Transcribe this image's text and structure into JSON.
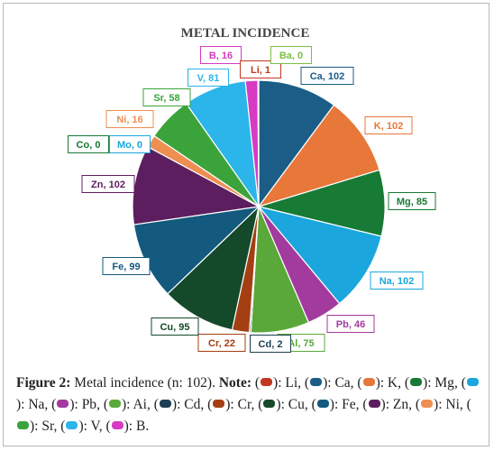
{
  "chart_data": {
    "type": "pie",
    "title": "METAL INCIDENCE",
    "slices": [
      {
        "name": "Ca",
        "value": 102,
        "label": "Ca, 102",
        "color": "#1b5d86"
      },
      {
        "name": "K",
        "value": 102,
        "label": "K, 102",
        "color": "#e8773a"
      },
      {
        "name": "Mg",
        "value": 85,
        "label": "Mg, 85",
        "color": "#177a35"
      },
      {
        "name": "Na",
        "value": 102,
        "label": "Na, 102",
        "color": "#1ba6dd"
      },
      {
        "name": "Pb",
        "value": 46,
        "label": "Pb, 46",
        "color": "#a33a9e"
      },
      {
        "name": "Al",
        "value": 75,
        "label": "Al, 75",
        "color": "#5aa83a"
      },
      {
        "name": "Cd",
        "value": 2,
        "label": "Cd, 2",
        "color": "#1d3f52"
      },
      {
        "name": "Cr",
        "value": 22,
        "label": "Cr, 22",
        "color": "#a33f12"
      },
      {
        "name": "Cu",
        "value": 95,
        "label": "Cu, 95",
        "color": "#14492a"
      },
      {
        "name": "Fe",
        "value": 99,
        "label": "Fe, 99",
        "color": "#135a7e"
      },
      {
        "name": "Mo",
        "value": 0,
        "label": "Mo, 0",
        "color": "#1ba6dd"
      },
      {
        "name": "Co",
        "value": 0,
        "label": "Co, 0",
        "color": "#177a35"
      },
      {
        "name": "Zn",
        "value": 102,
        "label": "Zn, 102",
        "color": "#5c1e5e"
      },
      {
        "name": "Ni",
        "value": 16,
        "label": "Ni, 16",
        "color": "#ee8f52"
      },
      {
        "name": "Sr",
        "value": 58,
        "label": "Sr, 58",
        "color": "#3aa43a"
      },
      {
        "name": "V",
        "value": 81,
        "label": "V, 81",
        "color": "#2bb5ea"
      },
      {
        "name": "B",
        "value": 16,
        "label": "B, 16",
        "color": "#d63bc2"
      },
      {
        "name": "Li",
        "value": 1,
        "label": "Li, 1",
        "color": "#c0391f"
      },
      {
        "name": "Ba",
        "value": 0,
        "label": "Ba, 0",
        "color": "#7bc043"
      }
    ]
  },
  "caption": {
    "prefix": "Figure 2:",
    "text": " Metal incidence (n: 102). ",
    "note_label": "Note:",
    "legend": [
      {
        "name": "Li",
        "color": "#c0391f",
        "sep": ", "
      },
      {
        "name": "Ca",
        "color": "#1b5d86",
        "sep": ", "
      },
      {
        "name": "K",
        "color": "#e8773a",
        "sep": ", "
      },
      {
        "name": "Mg",
        "color": "#177a35",
        "sep": ", "
      },
      {
        "name": "Na",
        "color": "#1ba6dd",
        "sep": ", "
      },
      {
        "name": "Pb",
        "color": "#a33a9e",
        "sep": ", "
      },
      {
        "name": "Ai",
        "color": "#5aa83a",
        "sep": ", "
      },
      {
        "name": "Cd",
        "color": "#1d3f52",
        "sep": ", "
      },
      {
        "name": "Cr",
        "color": "#a33f12",
        "sep": ", "
      },
      {
        "name": "Cu",
        "color": "#14492a",
        "sep": ", "
      },
      {
        "name": "Fe",
        "color": "#135a7e",
        "sep": ", "
      },
      {
        "name": "Zn",
        "color": "#5c1e5e",
        "sep": ", "
      },
      {
        "name": "Ni",
        "color": "#ee8f52",
        "sep": ", "
      },
      {
        "name": "Sr",
        "color": "#3aa43a",
        "sep": ", "
      },
      {
        "name": "V",
        "color": "#2bb5ea",
        "sep": ", "
      },
      {
        "name": "B",
        "color": "#d63bc2",
        "sep": "."
      }
    ]
  }
}
